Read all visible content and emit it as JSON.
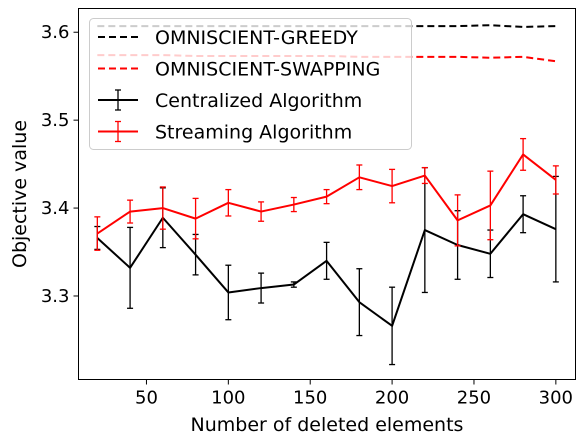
{
  "chart_data": {
    "type": "line",
    "xlabel": "Number of deleted elements",
    "ylabel": "Objective value",
    "xlim": [
      8.5,
      312
    ],
    "ylim": [
      3.205,
      3.627
    ],
    "xticks": [
      50,
      100,
      150,
      200,
      250,
      300
    ],
    "yticks": [
      3.3,
      3.4,
      3.5,
      3.6
    ],
    "xtick_labels": [
      "50",
      "100",
      "150",
      "200",
      "250",
      "300"
    ],
    "ytick_labels": [
      "3.3",
      "3.4",
      "3.5",
      "3.6"
    ],
    "grid": false,
    "legend_position": "top-left",
    "x": [
      20,
      40,
      60,
      80,
      100,
      120,
      140,
      160,
      180,
      200,
      220,
      240,
      260,
      280,
      300
    ],
    "series": [
      {
        "name": "OMNISCIENT-GREEDY",
        "color": "#000000",
        "style": "dashed",
        "values": [
          3.607,
          3.607,
          3.607,
          3.607,
          3.607,
          3.607,
          3.607,
          3.607,
          3.607,
          3.607,
          3.607,
          3.607,
          3.608,
          3.606,
          3.607
        ]
      },
      {
        "name": "OMNISCIENT-SWAPPING",
        "color": "#ff0000",
        "style": "dashed",
        "values": [
          3.574,
          3.574,
          3.574,
          3.573,
          3.573,
          3.573,
          3.573,
          3.573,
          3.572,
          3.572,
          3.572,
          3.572,
          3.571,
          3.572,
          3.567
        ]
      },
      {
        "name": "Centralized Algorithm",
        "color": "#000000",
        "style": "solid",
        "values": [
          3.366,
          3.332,
          3.389,
          3.347,
          3.304,
          3.309,
          3.313,
          3.34,
          3.293,
          3.266,
          3.375,
          3.358,
          3.348,
          3.393,
          3.376
        ],
        "errors": [
          0.013,
          0.046,
          0.034,
          0.023,
          0.031,
          0.017,
          0.003,
          0.021,
          0.038,
          0.044,
          0.071,
          0.039,
          0.027,
          0.021,
          0.06
        ]
      },
      {
        "name": "Streaming Algorithm",
        "color": "#ff0000",
        "style": "solid",
        "values": [
          3.371,
          3.396,
          3.4,
          3.388,
          3.406,
          3.396,
          3.404,
          3.413,
          3.435,
          3.425,
          3.437,
          3.386,
          3.403,
          3.461,
          3.432
        ],
        "errors": [
          0.019,
          0.013,
          0.024,
          0.023,
          0.015,
          0.011,
          0.008,
          0.008,
          0.014,
          0.019,
          0.009,
          0.029,
          0.039,
          0.018,
          0.016
        ]
      }
    ]
  }
}
